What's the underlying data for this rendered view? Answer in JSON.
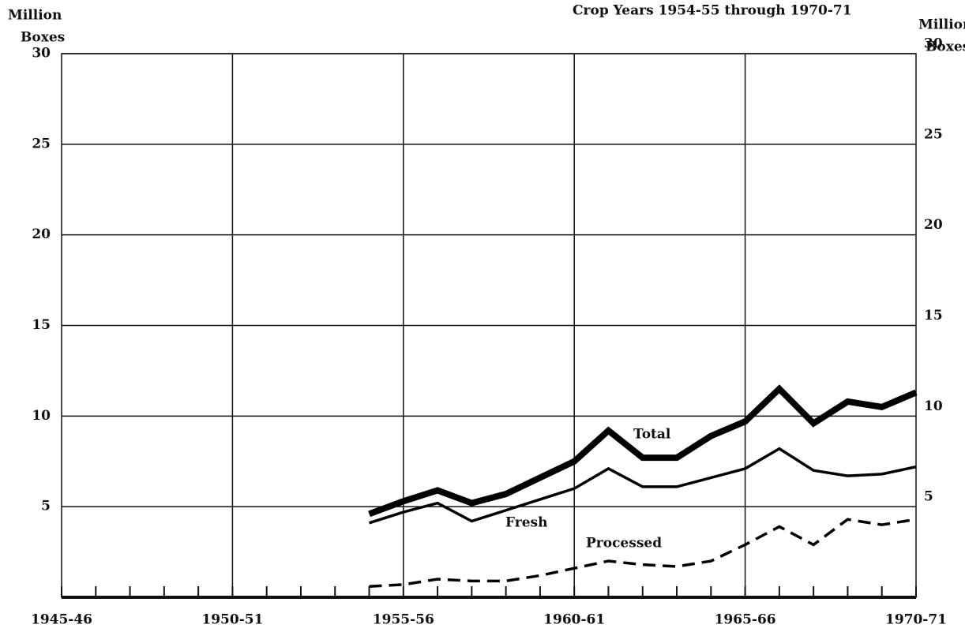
{
  "chart_data": {
    "type": "line",
    "title": "Crop Years 1954-55 through 1970-71",
    "y_label": [
      "Million",
      "Boxes"
    ],
    "y2_label": [
      "Million",
      "Boxes"
    ],
    "categories": [
      "1945-46",
      null,
      null,
      null,
      null,
      "1950-51",
      null,
      null,
      null,
      null,
      "1955-56",
      null,
      null,
      null,
      null,
      "1960-61",
      null,
      null,
      null,
      null,
      "1965-66",
      null,
      null,
      null,
      null,
      "1970-71"
    ],
    "series": [
      {
        "name": "Total",
        "color": "#000000",
        "style": "thick",
        "values": [
          null,
          null,
          null,
          null,
          null,
          null,
          null,
          null,
          null,
          4.6,
          5.3,
          5.9,
          5.2,
          5.7,
          6.6,
          7.5,
          9.2,
          7.7,
          7.7,
          8.9,
          9.7,
          11.5,
          9.6,
          10.8,
          10.5,
          11.3
        ]
      },
      {
        "name": "Fresh",
        "color": "#000000",
        "style": "solid",
        "values": [
          null,
          null,
          null,
          null,
          null,
          null,
          null,
          null,
          null,
          4.1,
          4.7,
          5.2,
          4.2,
          4.8,
          5.4,
          6.0,
          7.1,
          6.1,
          6.1,
          6.6,
          7.1,
          8.2,
          7.0,
          6.7,
          6.8,
          7.2
        ]
      },
      {
        "name": "Processed",
        "color": "#000000",
        "style": "dashed",
        "values": [
          null,
          null,
          null,
          null,
          null,
          null,
          null,
          null,
          null,
          0.6,
          0.7,
          1.0,
          0.9,
          0.9,
          1.2,
          1.6,
          2.0,
          1.8,
          1.7,
          2.0,
          2.9,
          3.9,
          2.9,
          4.3,
          4.0,
          4.3
        ]
      }
    ],
    "ylim": [
      0,
      30
    ],
    "yticks": [
      5,
      10,
      15,
      20,
      25,
      30
    ],
    "y2lim": [
      0,
      30
    ],
    "y2ticks": [
      5,
      10,
      15,
      20,
      25,
      30
    ],
    "grid": true
  }
}
